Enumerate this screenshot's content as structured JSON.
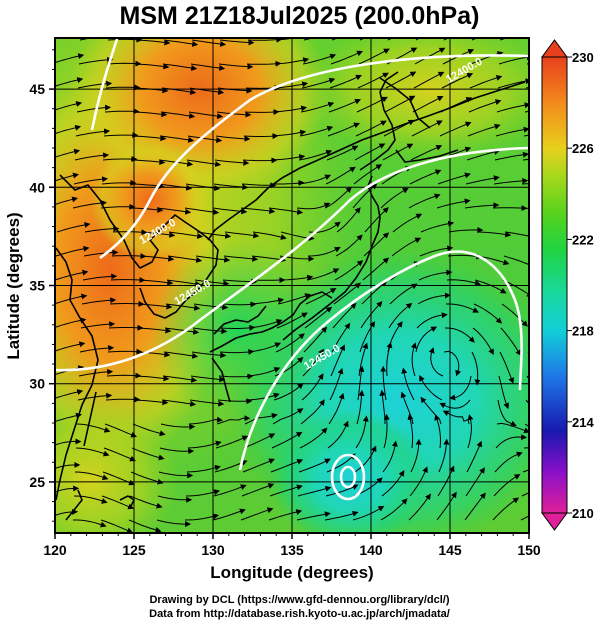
{
  "title": "MSM 21Z18Jul2025 (200.0hPa)",
  "axes": {
    "xlabel": "Longitude (degrees)",
    "ylabel": "Latitude  (degrees)",
    "xticks": [
      "120",
      "125",
      "130",
      "135",
      "140",
      "145",
      "150"
    ],
    "yticks": [
      "25",
      "30",
      "35",
      "40",
      "45"
    ],
    "xrange": [
      120,
      150
    ],
    "yrange": [
      22.4,
      47.6
    ]
  },
  "colorbar": {
    "labels": [
      "230",
      "226",
      "222",
      "218",
      "214",
      "210"
    ],
    "range": [
      210,
      230
    ],
    "colors": [
      "#e0209a",
      "#8a10c8",
      "#1818b0",
      "#1e78e6",
      "#12cfd8",
      "#18d8a0",
      "#20d440",
      "#5ad21c",
      "#a8d81c",
      "#e8d01c",
      "#f28a1c",
      "#e8401c"
    ]
  },
  "contour_labels": [
    {
      "text": "12400.0",
      "lon": 126.6,
      "lat": 37.6
    },
    {
      "text": "12450.0",
      "lon": 128.8,
      "lat": 34.5
    },
    {
      "text": "12400.0",
      "lon": 146.0,
      "lat": 45.8
    },
    {
      "text": "12450.0",
      "lon": 137.0,
      "lat": 31.2
    }
  ],
  "credits": [
    "Drawing by DCL (https://www.gfd-dennou.org/library/dcl/)",
    "Data from http://database.rish.kyoto-u.ac.jp/arch/jmadata/"
  ]
}
